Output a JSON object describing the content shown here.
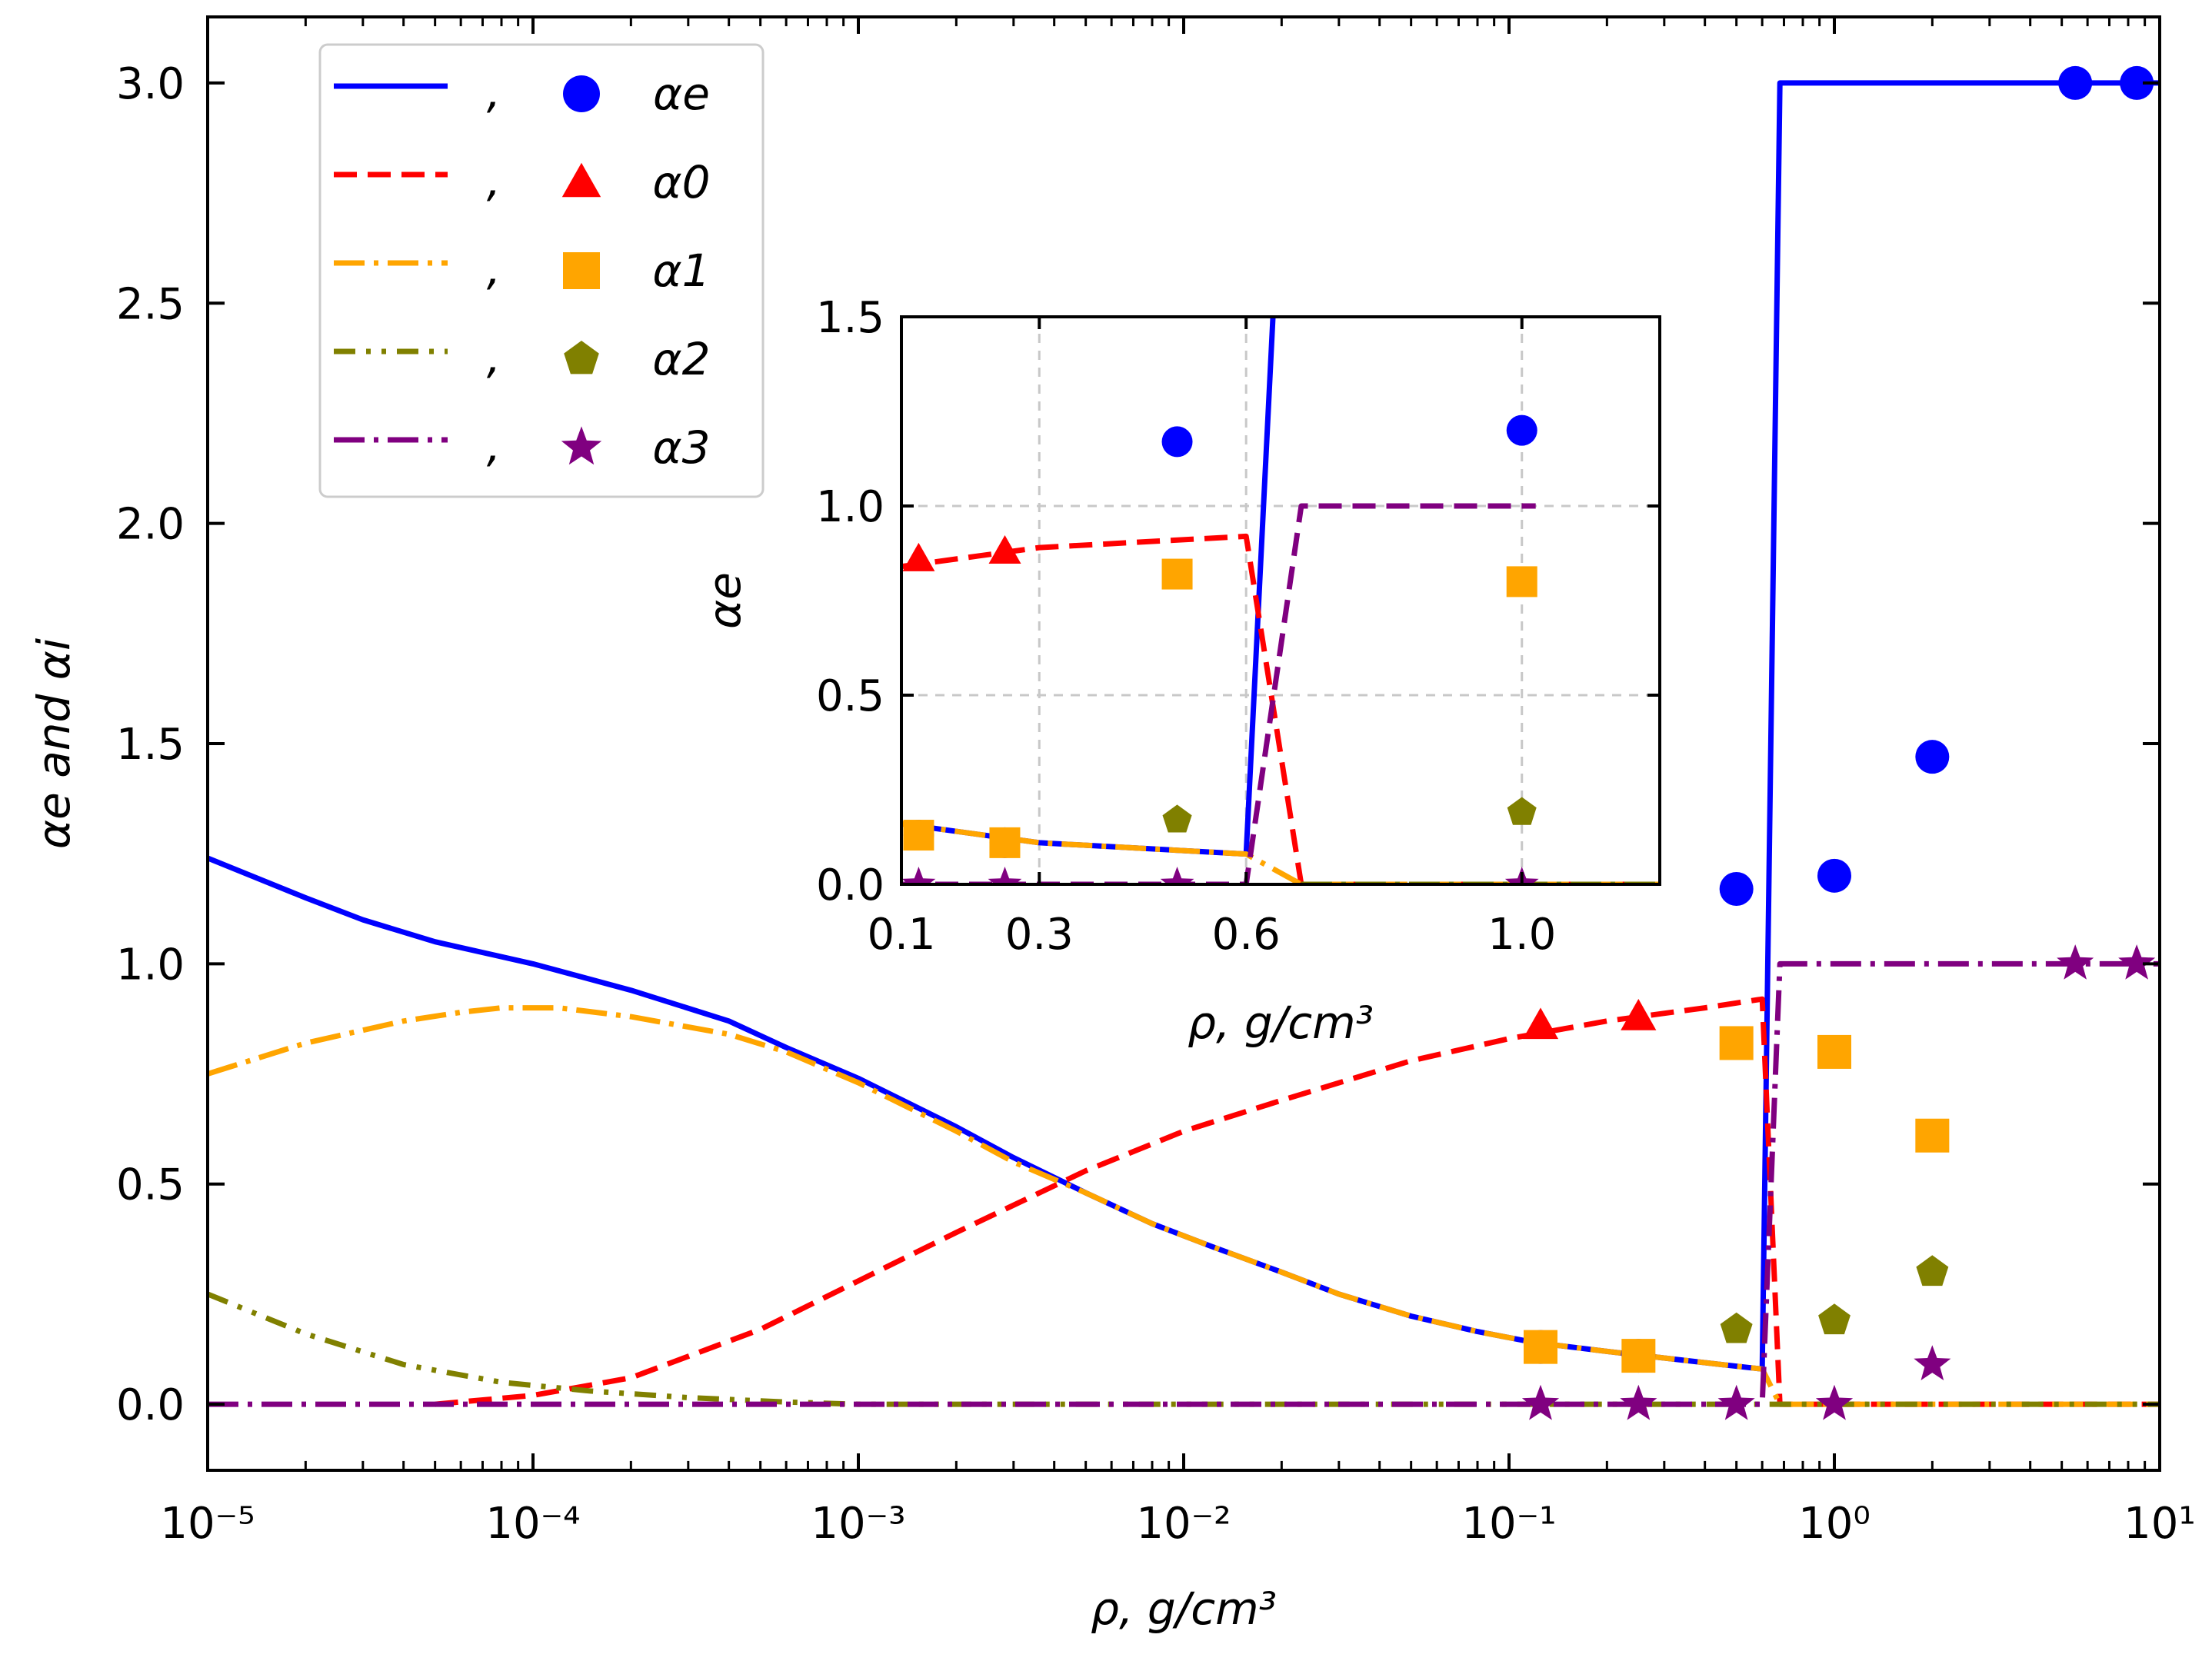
{
  "chart_data": [
    {
      "type": "line",
      "role": "main",
      "xlabel": "ρ, g/cm³",
      "ylabel": "αe and αi",
      "xscale": "log",
      "xlim": [
        1e-05,
        10
      ],
      "ylim": [
        -0.15,
        3.15
      ],
      "x_ticks": [
        1e-05,
        0.0001,
        0.001,
        0.01,
        0.1,
        1,
        10
      ],
      "x_tick_labels": [
        "10⁻⁵",
        "10⁻⁴",
        "10⁻³",
        "10⁻²",
        "10⁻¹",
        "10⁰",
        "10¹"
      ],
      "y_ticks": [
        0,
        0.5,
        1,
        1.5,
        2,
        2.5,
        3
      ],
      "y_tick_labels": [
        "0.0",
        "0.5",
        "1.0",
        "1.5",
        "2.0",
        "2.5",
        "3.0"
      ],
      "grid": false,
      "legend_position": "top-left",
      "legend": [
        {
          "line_label": ",",
          "marker_label": "αe",
          "color": "#0000ff",
          "linestyle": "solid",
          "marker": "circle"
        },
        {
          "line_label": ",",
          "marker_label": "α0",
          "color": "#ff0000",
          "linestyle": "dashed",
          "marker": "triangle"
        },
        {
          "line_label": ",",
          "marker_label": "α1",
          "color": "#ffa500",
          "linestyle": "dashdot",
          "marker": "square"
        },
        {
          "line_label": ",",
          "marker_label": "α2",
          "color": "#808000",
          "linestyle": "dashdotdot",
          "marker": "pentagon"
        },
        {
          "line_label": ",",
          "marker_label": "α3",
          "color": "#800080",
          "linestyle": "dashdot",
          "marker": "star"
        }
      ],
      "series_lines": [
        {
          "color": "#0000ff",
          "linestyle": "solid",
          "x": [
            1e-05,
            2e-05,
            3e-05,
            5e-05,
            0.0001,
            0.0002,
            0.0004,
            0.0006,
            0.001,
            0.002,
            0.003,
            0.005,
            0.008,
            0.012,
            0.02,
            0.03,
            0.05,
            0.08,
            0.12,
            0.2,
            0.3,
            0.45,
            0.6,
            0.6,
            0.68,
            10
          ],
          "y": [
            1.24,
            1.15,
            1.1,
            1.05,
            1.0,
            0.94,
            0.87,
            0.81,
            0.74,
            0.63,
            0.56,
            0.48,
            0.41,
            0.36,
            0.3,
            0.25,
            0.2,
            0.165,
            0.14,
            0.12,
            0.105,
            0.09,
            0.08,
            0.08,
            3.0,
            3.0
          ]
        },
        {
          "color": "#ff0000",
          "linestyle": "dashed",
          "x": [
            5e-05,
            0.0001,
            0.0002,
            0.0005,
            0.001,
            0.002,
            0.005,
            0.01,
            0.02,
            0.05,
            0.1,
            0.2,
            0.4,
            0.6,
            0.68,
            10
          ],
          "y": [
            0.0,
            0.02,
            0.06,
            0.17,
            0.28,
            0.39,
            0.53,
            0.62,
            0.69,
            0.78,
            0.83,
            0.87,
            0.9,
            0.92,
            0.0,
            0.0
          ]
        },
        {
          "color": "#ffa500",
          "linestyle": "dashdot",
          "x": [
            1e-05,
            2e-05,
            4e-05,
            6e-05,
            8e-05,
            0.00012,
            0.0002,
            0.0004,
            0.0006,
            0.001,
            0.002,
            0.003,
            0.005,
            0.008,
            0.012,
            0.02,
            0.03,
            0.05,
            0.08,
            0.12,
            0.2,
            0.3,
            0.45,
            0.6,
            0.68,
            10
          ],
          "y": [
            0.75,
            0.82,
            0.87,
            0.89,
            0.9,
            0.9,
            0.88,
            0.84,
            0.8,
            0.73,
            0.62,
            0.55,
            0.48,
            0.41,
            0.36,
            0.3,
            0.25,
            0.2,
            0.165,
            0.14,
            0.12,
            0.105,
            0.09,
            0.08,
            0.0,
            0.0
          ]
        },
        {
          "color": "#808000",
          "linestyle": "dashdotdot",
          "x": [
            1e-05,
            2e-05,
            4e-05,
            8e-05,
            0.00015,
            0.0003,
            0.0006,
            0.001,
            0.01,
            10
          ],
          "y": [
            0.25,
            0.16,
            0.09,
            0.05,
            0.03,
            0.015,
            0.005,
            0.0,
            0.0,
            0.0
          ]
        },
        {
          "color": "#800080",
          "linestyle": "dashdot",
          "x": [
            1e-05,
            0.6,
            0.68,
            10
          ],
          "y": [
            0.0,
            0.0,
            1.0,
            1.0
          ]
        }
      ],
      "series_markers": [
        {
          "color": "#0000ff",
          "marker": "circle",
          "x": [
            0.125,
            0.25,
            0.5,
            1.0,
            2.0,
            5.5,
            8.5
          ],
          "y": [
            0.13,
            0.11,
            1.17,
            1.2,
            1.47,
            3.0,
            3.0
          ]
        },
        {
          "color": "#ff0000",
          "marker": "triangle",
          "x": [
            0.125,
            0.25
          ],
          "y": [
            0.86,
            0.88
          ]
        },
        {
          "color": "#ffa500",
          "marker": "square",
          "x": [
            0.125,
            0.25,
            0.5,
            1.0,
            2.0
          ],
          "y": [
            0.13,
            0.11,
            0.82,
            0.8,
            0.61
          ]
        },
        {
          "color": "#808000",
          "marker": "pentagon",
          "x": [
            0.5,
            1.0,
            2.0
          ],
          "y": [
            0.17,
            0.19,
            0.3
          ]
        },
        {
          "color": "#800080",
          "marker": "star",
          "x": [
            0.125,
            0.25,
            0.5,
            1.0,
            2.0,
            5.5,
            8.5
          ],
          "y": [
            0.0,
            0.0,
            0.0,
            0.0,
            0.09,
            1.0,
            1.0
          ]
        }
      ]
    },
    {
      "type": "line",
      "role": "inset",
      "xlabel": "ρ, g/cm³",
      "ylabel": "αe",
      "xscale": "linear",
      "xlim": [
        0.1,
        1.2
      ],
      "ylim": [
        0,
        1.5
      ],
      "x_ticks": [
        0.1,
        0.3,
        0.6,
        1.0
      ],
      "x_tick_labels": [
        "0.1",
        "0.3",
        "0.6",
        "1.0"
      ],
      "y_ticks": [
        0,
        0.5,
        1.0,
        1.5
      ],
      "y_tick_labels": [
        "0.0",
        "0.5",
        "1.0",
        "1.5"
      ],
      "grid": true,
      "series_lines": [
        {
          "color": "#0000ff",
          "linestyle": "solid",
          "x": [
            0.1,
            0.3,
            0.6,
            0.6,
            0.68
          ],
          "y": [
            0.16,
            0.11,
            0.08,
            0.08,
            3.0
          ]
        },
        {
          "color": "#ff0000",
          "linestyle": "dashed",
          "x": [
            0.1,
            0.3,
            0.6,
            0.68,
            1.2
          ],
          "y": [
            0.84,
            0.89,
            0.92,
            0.0,
            0.0
          ]
        },
        {
          "color": "#ffa500",
          "linestyle": "dashdot",
          "x": [
            0.1,
            0.3,
            0.6,
            0.68,
            1.2
          ],
          "y": [
            0.16,
            0.11,
            0.08,
            0.0,
            0.0
          ]
        },
        {
          "color": "#800080",
          "linestyle": "dashed",
          "x": [
            0.1,
            0.6,
            0.68,
            1.02
          ],
          "y": [
            0.0,
            0.0,
            1.0,
            1.0
          ]
        },
        {
          "color": "#808000",
          "linestyle": "dashdot",
          "x": [
            0.68,
            1.2
          ],
          "y": [
            0.0,
            0.0
          ]
        }
      ],
      "series_markers": [
        {
          "color": "#0000ff",
          "marker": "circle",
          "x": [
            0.125,
            0.25,
            0.5,
            1.0
          ],
          "y": [
            0.13,
            0.11,
            1.17,
            1.2
          ]
        },
        {
          "color": "#ff0000",
          "marker": "triangle",
          "x": [
            0.125,
            0.25
          ],
          "y": [
            0.86,
            0.88
          ]
        },
        {
          "color": "#ffa500",
          "marker": "square",
          "x": [
            0.125,
            0.25,
            0.5,
            1.0
          ],
          "y": [
            0.13,
            0.11,
            0.82,
            0.8
          ]
        },
        {
          "color": "#808000",
          "marker": "pentagon",
          "x": [
            0.5,
            1.0
          ],
          "y": [
            0.17,
            0.19
          ]
        },
        {
          "color": "#800080",
          "marker": "star",
          "x": [
            0.125,
            0.25,
            0.5,
            1.0
          ],
          "y": [
            0.0,
            0.0,
            0.0,
            0.0
          ]
        }
      ]
    }
  ]
}
